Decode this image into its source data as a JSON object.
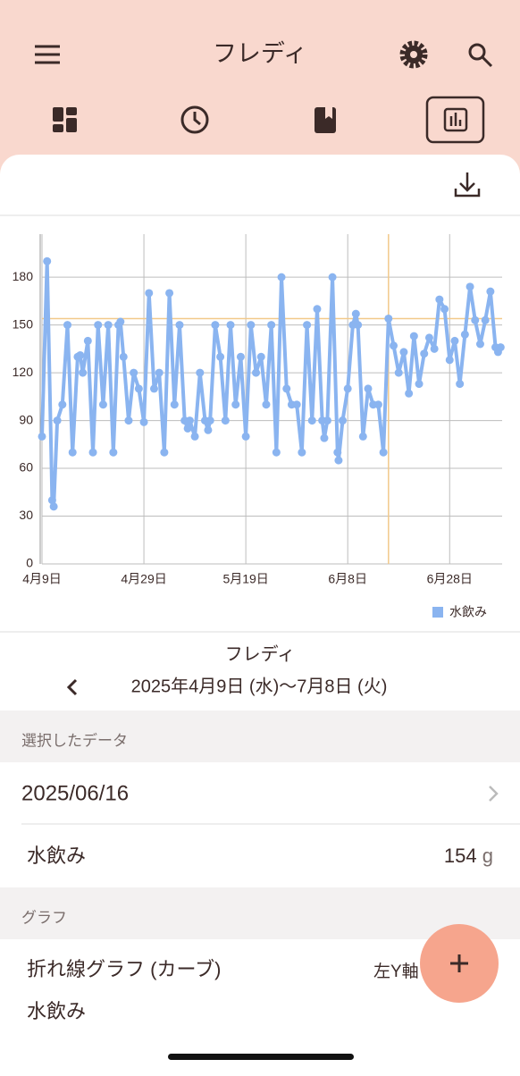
{
  "header": {
    "title": "フレディ"
  },
  "chart_data": {
    "type": "line",
    "x": [
      0,
      1,
      2,
      2.3,
      3,
      4,
      5,
      6,
      7,
      7.5,
      8,
      9,
      10,
      11,
      12,
      13,
      14,
      15,
      15.4,
      16,
      17,
      18,
      19,
      20,
      21,
      22,
      23,
      24,
      25,
      26,
      27,
      28,
      28.6,
      29,
      30,
      31,
      32,
      32.6,
      33,
      34,
      35,
      36,
      37,
      38,
      39,
      40,
      41,
      42,
      43,
      44,
      45,
      46,
      47,
      48,
      49,
      50,
      51,
      52,
      53,
      54,
      55,
      55.4,
      56,
      57,
      58,
      58.2,
      59,
      60,
      61,
      61.6,
      62,
      63,
      64,
      65,
      66,
      67,
      68,
      69,
      70,
      71,
      72,
      73,
      74,
      75,
      76,
      77,
      78,
      79,
      80,
      81,
      82,
      83,
      84,
      85,
      86,
      87,
      88,
      89,
      89.5,
      90
    ],
    "series": [
      {
        "name": "水飲み",
        "color": "#8ab4f0",
        "values": [
          80,
          190,
          40,
          36,
          90,
          100,
          150,
          70,
          130,
          131,
          120,
          140,
          70,
          150,
          100,
          150,
          70,
          150,
          152,
          130,
          90,
          120,
          110,
          89,
          170,
          110,
          120,
          70,
          170,
          100,
          150,
          90,
          85,
          90,
          80,
          120,
          90,
          84,
          90,
          150,
          130,
          90,
          150,
          100,
          130,
          80,
          150,
          120,
          130,
          100,
          150,
          70,
          180,
          110,
          100,
          100,
          70,
          150,
          90,
          160,
          90,
          79,
          90,
          180,
          70,
          65,
          90,
          110,
          150,
          157,
          150,
          80,
          110,
          100,
          100,
          70,
          154,
          137,
          120,
          133,
          107,
          143,
          113,
          132,
          142,
          135,
          166,
          160,
          128,
          140,
          113,
          144,
          174,
          153,
          138,
          153,
          171,
          136,
          133,
          136
        ]
      }
    ],
    "xlim": [
      0,
      90.3
    ],
    "ylim": [
      0,
      207
    ],
    "xticks": [
      {
        "value": 0,
        "label": "4月9日"
      },
      {
        "value": 20,
        "label": "4月29日"
      },
      {
        "value": 40,
        "label": "5月19日"
      },
      {
        "value": 60,
        "label": "6月8日"
      },
      {
        "value": 80,
        "label": "6月28日"
      }
    ],
    "yticks": [
      0,
      30,
      60,
      90,
      120,
      150,
      180
    ],
    "grid": true,
    "legend": "bottom-right",
    "crosshair": {
      "x": 68,
      "y": 154,
      "color": "#f2c98a"
    }
  },
  "range": {
    "name": "フレディ",
    "period": "2025年4月9日 (水)～7月8日 (火)"
  },
  "selected": {
    "heading": "選択したデータ",
    "date": "2025/06/16",
    "name": "水飲み",
    "value": "154",
    "unit": "g"
  },
  "graph": {
    "heading": "グラフ",
    "kind": "折れ線グラフ (カーブ)",
    "axis": "左Y軸",
    "series": "水飲み"
  }
}
